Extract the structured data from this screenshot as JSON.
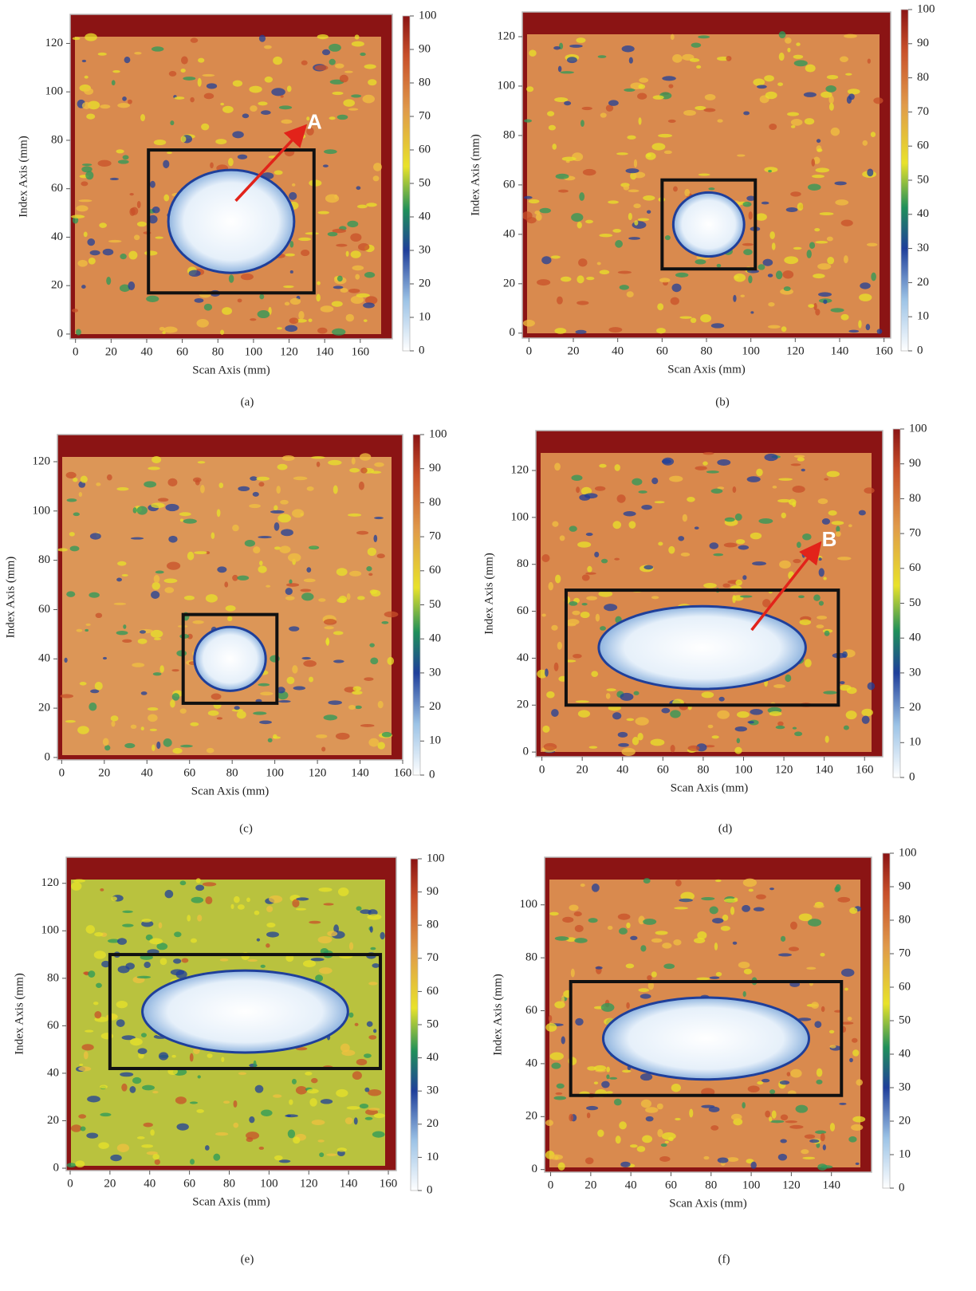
{
  "chart_data": [
    {
      "type": "heatmap",
      "panel_label": "(a)",
      "xlabel": "Scan Axis (mm)",
      "ylabel": "Index Axis (mm)",
      "xlim": [
        -3,
        178
      ],
      "ylim": [
        -2,
        132
      ],
      "xticks": [
        0,
        20,
        40,
        60,
        80,
        100,
        120,
        140,
        160
      ],
      "yticks": [
        0,
        20,
        40,
        60,
        80,
        100,
        120
      ],
      "colorbar": {
        "lim": [
          0,
          100
        ],
        "ticks": [
          0,
          10,
          20,
          30,
          40,
          50,
          60,
          70,
          80,
          90,
          100
        ]
      },
      "base_color": "#d98a4e",
      "box": {
        "x": [
          41,
          134
        ],
        "y": [
          17,
          76
        ]
      },
      "annotation": {
        "text": "A",
        "from": [
          90,
          55
        ],
        "to": [
          128,
          85
        ]
      }
    },
    {
      "type": "heatmap",
      "panel_label": "(b)",
      "xlabel": "Scan Axis (mm)",
      "ylabel": "Index Axis (mm)",
      "xlim": [
        -3,
        163
      ],
      "ylim": [
        -2,
        130
      ],
      "xticks": [
        0,
        20,
        40,
        60,
        80,
        100,
        120,
        140,
        160
      ],
      "yticks": [
        0,
        20,
        40,
        60,
        80,
        100,
        120
      ],
      "colorbar": {
        "lim": [
          0,
          100
        ],
        "ticks": [
          0,
          10,
          20,
          30,
          40,
          50,
          60,
          70,
          80,
          90,
          100
        ]
      },
      "base_color": "#d98a4e",
      "box": {
        "x": [
          60,
          102
        ],
        "y": [
          26,
          62
        ]
      }
    },
    {
      "type": "heatmap",
      "panel_label": "(c)",
      "xlabel": "Scan Axis (mm)",
      "ylabel": "Index Axis (mm)",
      "xlim": [
        -2,
        160
      ],
      "ylim": [
        -1,
        131
      ],
      "xticks": [
        0,
        20,
        40,
        60,
        80,
        100,
        120,
        140,
        160
      ],
      "yticks": [
        0,
        20,
        40,
        60,
        80,
        100,
        120
      ],
      "colorbar": {
        "lim": [
          0,
          100
        ],
        "ticks": [
          0,
          10,
          20,
          30,
          40,
          50,
          60,
          70,
          80,
          90,
          100
        ]
      },
      "base_color": "#dc9657",
      "box": {
        "x": [
          57,
          101
        ],
        "y": [
          22,
          58
        ]
      }
    },
    {
      "type": "heatmap",
      "panel_label": "(d)",
      "xlabel": "Scan Axis (mm)",
      "ylabel": "Index Axis (mm)",
      "xlim": [
        -3,
        169
      ],
      "ylim": [
        -2,
        137
      ],
      "xticks": [
        0,
        20,
        40,
        60,
        80,
        100,
        120,
        140,
        160
      ],
      "yticks": [
        0,
        20,
        40,
        60,
        80,
        100,
        120
      ],
      "colorbar": {
        "lim": [
          0,
          100
        ],
        "ticks": [
          0,
          10,
          20,
          30,
          40,
          50,
          60,
          70,
          80,
          90,
          100
        ]
      },
      "base_color": "#d9884c",
      "box": {
        "x": [
          12,
          147
        ],
        "y": [
          20,
          69
        ]
      },
      "annotation": {
        "text": "B",
        "from": [
          104,
          52
        ],
        "to": [
          137,
          88
        ]
      }
    },
    {
      "type": "heatmap",
      "panel_label": "(e)",
      "xlabel": "Scan Axis (mm)",
      "ylabel": "Index Axis (mm)",
      "xlim": [
        -2,
        164
      ],
      "ylim": [
        -1,
        131
      ],
      "xticks": [
        0,
        20,
        40,
        60,
        80,
        100,
        120,
        140,
        160
      ],
      "yticks": [
        0,
        20,
        40,
        60,
        80,
        100,
        120
      ],
      "colorbar": {
        "lim": [
          0,
          100
        ],
        "ticks": [
          0,
          10,
          20,
          30,
          40,
          50,
          60,
          70,
          80,
          90,
          100
        ]
      },
      "base_color": "#b9c23e",
      "box": {
        "x": [
          20,
          156
        ],
        "y": [
          42,
          90
        ]
      }
    },
    {
      "type": "heatmap",
      "panel_label": "(f)",
      "xlabel": "Scan Axis (mm)",
      "ylabel": "Index Axis (mm)",
      "xlim": [
        -3,
        160
      ],
      "ylim": [
        -1,
        118
      ],
      "xticks": [
        0,
        20,
        40,
        60,
        80,
        100,
        120,
        140
      ],
      "yticks": [
        0,
        20,
        40,
        60,
        80,
        100
      ],
      "colorbar": {
        "lim": [
          0,
          100
        ],
        "ticks": [
          0,
          10,
          20,
          30,
          40,
          50,
          60,
          70,
          80,
          90,
          100
        ]
      },
      "base_color": "#d98a4e",
      "box": {
        "x": [
          10,
          145
        ],
        "y": [
          28,
          71
        ]
      }
    }
  ]
}
